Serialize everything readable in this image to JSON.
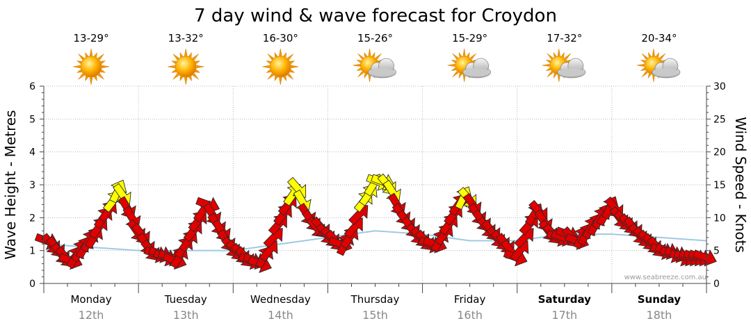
{
  "chart_data": {
    "type": "line",
    "title": "7 day wind & wave forecast for Croydon",
    "ylabel_left": "Wave Height - Metres",
    "ylabel_right": "Wind Speed - Knots",
    "ylim_left": [
      0,
      6
    ],
    "ylim_right": [
      0,
      30
    ],
    "yticks_left": [
      "0",
      "1",
      "2",
      "3",
      "4",
      "5",
      "6"
    ],
    "yticks_right": [
      "0",
      "5",
      "10",
      "15",
      "20",
      "25",
      "30"
    ],
    "watermark": "www.seabreeze.com.au",
    "days": [
      {
        "name": "Monday",
        "date": "12th",
        "temp": "13-29°",
        "weather": "sunny",
        "bold": false
      },
      {
        "name": "Tuesday",
        "date": "13th",
        "temp": "13-32°",
        "weather": "sunny",
        "bold": false
      },
      {
        "name": "Wednesday",
        "date": "14th",
        "temp": "16-30°",
        "weather": "sunny",
        "bold": false
      },
      {
        "name": "Thursday",
        "date": "15th",
        "temp": "15-26°",
        "weather": "partly-cloudy",
        "bold": false
      },
      {
        "name": "Friday",
        "date": "16th",
        "temp": "15-29°",
        "weather": "partly-cloudy",
        "bold": false
      },
      {
        "name": "Saturday",
        "date": "17th",
        "temp": "17-32°",
        "weather": "partly-cloudy",
        "bold": true
      },
      {
        "name": "Sunday",
        "date": "18th",
        "temp": "20-34°",
        "weather": "partly-cloudy",
        "bold": true
      }
    ],
    "wind_series": {
      "name": "Wind Speed (knots)",
      "unit_x": "day index (0 = Monday 00:00)",
      "x": [
        0.03,
        0.08,
        0.13,
        0.18,
        0.23,
        0.28,
        0.33,
        0.38,
        0.43,
        0.48,
        0.53,
        0.58,
        0.63,
        0.68,
        0.73,
        0.78,
        0.83,
        0.88,
        0.93,
        0.98,
        1.03,
        1.08,
        1.13,
        1.18,
        1.23,
        1.28,
        1.33,
        1.38,
        1.43,
        1.48,
        1.53,
        1.58,
        1.63,
        1.68,
        1.73,
        1.78,
        1.83,
        1.88,
        1.93,
        1.98,
        2.03,
        2.08,
        2.13,
        2.18,
        2.23,
        2.28,
        2.33,
        2.38,
        2.43,
        2.48,
        2.53,
        2.58,
        2.63,
        2.68,
        2.73,
        2.78,
        2.83,
        2.88,
        2.93,
        2.98,
        3.03,
        3.08,
        3.13,
        3.18,
        3.23,
        3.28,
        3.33,
        3.38,
        3.43,
        3.48,
        3.53,
        3.58,
        3.63,
        3.68,
        3.73,
        3.78,
        3.83,
        3.88,
        3.93,
        3.98,
        4.03,
        4.08,
        4.13,
        4.18,
        4.23,
        4.28,
        4.33,
        4.38,
        4.43,
        4.48,
        4.53,
        4.58,
        4.63,
        4.68,
        4.73,
        4.78,
        4.83,
        4.88,
        4.93,
        4.98,
        5.03,
        5.08,
        5.13,
        5.18,
        5.23,
        5.28,
        5.33,
        5.38,
        5.43,
        5.48,
        5.53,
        5.58,
        5.63,
        5.68,
        5.73,
        5.78,
        5.83,
        5.88,
        5.93,
        5.98,
        6.03,
        6.08,
        6.13,
        6.18,
        6.23,
        6.28,
        6.33,
        6.38,
        6.43,
        6.48,
        6.53,
        6.58,
        6.63,
        6.68,
        6.73,
        6.78,
        6.83,
        6.88,
        6.93,
        6.98
      ],
      "y": [
        6.5,
        6.0,
        5.5,
        4.5,
        4.0,
        3.5,
        4.0,
        5.0,
        5.5,
        6.5,
        7.0,
        8.5,
        10.0,
        11.0,
        12.5,
        14.0,
        13.5,
        11.5,
        10.0,
        8.0,
        7.5,
        6.0,
        5.0,
        4.5,
        4.5,
        4.0,
        4.0,
        3.5,
        4.0,
        5.5,
        6.5,
        8.0,
        9.5,
        11.0,
        12.0,
        10.5,
        9.0,
        8.0,
        6.5,
        5.5,
        5.0,
        4.5,
        4.0,
        3.5,
        3.5,
        3.0,
        4.0,
        5.0,
        7.0,
        9.0,
        10.5,
        12.0,
        13.5,
        14.5,
        12.5,
        10.5,
        9.5,
        8.5,
        8.5,
        7.5,
        7.0,
        6.5,
        6.0,
        6.0,
        7.0,
        8.5,
        10.5,
        12.5,
        13.5,
        15.0,
        15.5,
        15.5,
        15.0,
        14.0,
        12.0,
        10.5,
        9.5,
        8.5,
        7.5,
        7.0,
        6.5,
        6.0,
        6.0,
        6.5,
        7.5,
        9.0,
        10.5,
        12.0,
        13.0,
        13.0,
        12.0,
        10.5,
        9.5,
        8.5,
        8.0,
        7.0,
        6.5,
        6.0,
        5.0,
        4.0,
        5.0,
        7.0,
        9.0,
        10.5,
        11.0,
        9.5,
        8.0,
        7.5,
        7.0,
        7.0,
        7.5,
        7.0,
        6.5,
        7.0,
        7.5,
        8.5,
        9.0,
        10.0,
        10.5,
        11.5,
        11.5,
        10.0,
        9.5,
        9.0,
        8.5,
        7.5,
        7.0,
        6.5,
        6.0,
        5.5,
        5.0,
        5.0,
        4.5,
        4.5,
        4.0,
        4.0,
        4.0,
        4.0,
        4.0,
        4.0
      ],
      "color_low": "#e00000",
      "color_high": "#ffff00",
      "yellow_threshold_knots": 12.5
    },
    "wave_series": {
      "name": "Wave Height (metres)",
      "x": [
        0,
        0.5,
        1,
        1.5,
        2,
        2.5,
        3,
        3.5,
        4,
        4.5,
        5,
        5.5,
        6,
        6.5,
        7
      ],
      "y": [
        1.2,
        1.1,
        1.0,
        1.0,
        1.0,
        1.2,
        1.4,
        1.6,
        1.5,
        1.3,
        1.3,
        1.5,
        1.5,
        1.4,
        1.3
      ],
      "color": "#9ecae1"
    }
  }
}
